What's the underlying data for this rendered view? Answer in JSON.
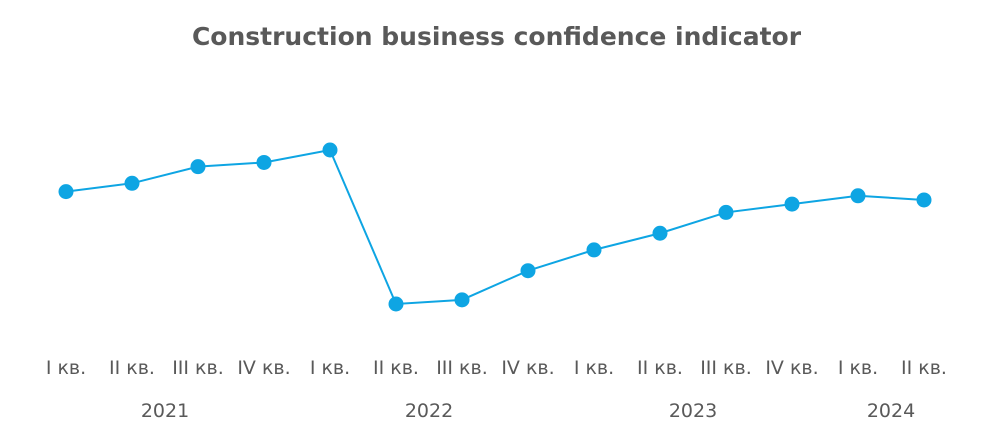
{
  "chart_data": {
    "type": "line",
    "title": "Construction business confidence indicator",
    "xlabel": "",
    "ylabel": "",
    "categories": [
      "I кв.",
      "II кв.",
      "III кв.",
      "IV кв.",
      "I кв.",
      "II кв.",
      "III кв.",
      "IV кв.",
      "I кв.",
      "II кв.",
      "III кв.",
      "IV кв.",
      "I кв.",
      "II кв."
    ],
    "years": [
      {
        "label": "2021",
        "start": 0,
        "end": 3
      },
      {
        "label": "2022",
        "start": 4,
        "end": 7
      },
      {
        "label": "2023",
        "start": 8,
        "end": 11
      },
      {
        "label": "2024",
        "start": 12,
        "end": 13
      }
    ],
    "series": [
      {
        "values": [
          -3.0,
          -2.0,
          0.0,
          0.5,
          2.0,
          -16.5,
          -16.0,
          -12.5,
          -10.0,
          -8.0,
          -5.5,
          -4.5,
          -3.5,
          -4.0
        ]
      }
    ],
    "ylim": [
      -20,
      5
    ],
    "grid": false,
    "legend": "none",
    "colors": {
      "line": "#0ea5e3",
      "text": "#595959"
    }
  }
}
